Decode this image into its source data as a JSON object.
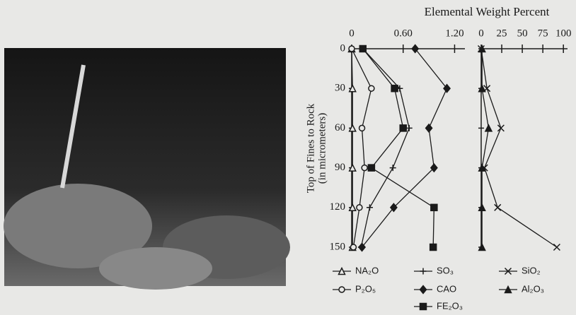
{
  "chart_data": {
    "type": "line",
    "title": "Elemental Weight Percent",
    "ylabel": [
      "Top of Fines to Rock",
      "(in micrometers)"
    ],
    "depths": [
      0,
      30,
      60,
      90,
      120,
      150
    ],
    "ylim": [
      0,
      150
    ],
    "y_inverted": true,
    "yticks": [
      0,
      30,
      60,
      90,
      120,
      150
    ],
    "panels": [
      {
        "xlim": [
          0,
          1.32
        ],
        "xticks": [
          0,
          {
            "value": 0.6,
            "label": "0.60"
          },
          {
            "value": 1.2,
            "label": "1.20"
          }
        ],
        "series": [
          {
            "name": "NA₂O",
            "marker": "triangle-open",
            "color": "#1a1a1a",
            "values": [
              0,
              0.01,
              0.01,
              0.01,
              0.01,
              0.01
            ]
          },
          {
            "name": "P₂O₅",
            "marker": "circle-open",
            "color": "#1a1a1a",
            "values": [
              0,
              0.23,
              0.12,
              0.15,
              0.09,
              0.02
            ]
          },
          {
            "name": "SO₃",
            "marker": "plus",
            "color": "#1a1a1a",
            "values": [
              0.13,
              0.56,
              0.67,
              0.48,
              0.21,
              0.11
            ]
          },
          {
            "name": "CAO",
            "marker": "diamond",
            "color": "#1a1a1a",
            "values": [
              0.74,
              1.11,
              0.9,
              0.96,
              0.49,
              0.12
            ]
          },
          {
            "name": "FE₂O₃",
            "marker": "square",
            "color": "#1a1a1a",
            "values": [
              0.13,
              0.5,
              0.6,
              0.23,
              0.96,
              0.95
            ]
          }
        ]
      },
      {
        "xlim": [
          0,
          105
        ],
        "xticks": [
          0,
          25,
          50,
          75,
          100
        ],
        "series": [
          {
            "name": "SiO₂",
            "marker": "x",
            "color": "#1a1a1a",
            "values": [
              0,
              7,
              24,
              4,
              20,
              92
            ]
          },
          {
            "name": "Al₂O₃",
            "marker": "triangle",
            "color": "#1a1a1a",
            "values": [
              1,
              1,
              9,
              1,
              1,
              1
            ]
          }
        ]
      }
    ]
  }
}
